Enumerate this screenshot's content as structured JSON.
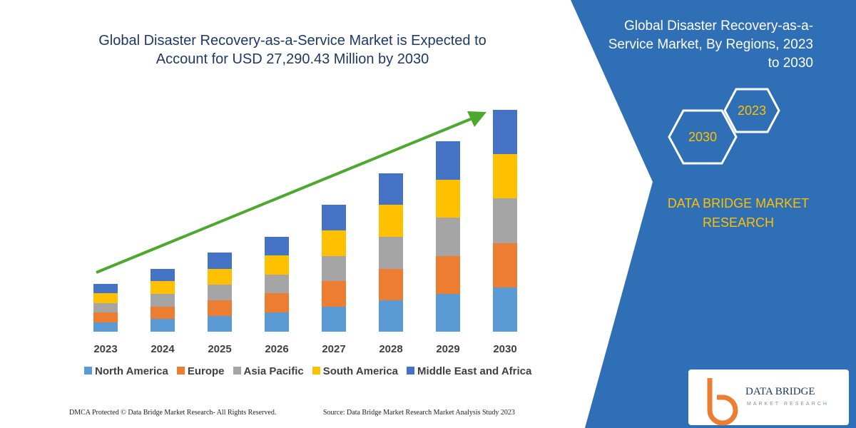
{
  "chart_data": {
    "type": "stacked_bar",
    "title": "Global Disaster Recovery-as-a-Service Market is Expected to Account for USD 27,290.43 Million by 2030",
    "categories": [
      "2023",
      "2024",
      "2025",
      "2026",
      "2027",
      "2028",
      "2029",
      "2030"
    ],
    "series": [
      {
        "name": "North America",
        "color": "#5b9bd5",
        "values": [
          13,
          18,
          22,
          27,
          35,
          44,
          53,
          62
        ]
      },
      {
        "name": "Europe",
        "color": "#ed7d31",
        "values": [
          14,
          17,
          22,
          27,
          36,
          44,
          53,
          62
        ]
      },
      {
        "name": "Asia Pacific",
        "color": "#a5a5a5",
        "values": [
          13,
          18,
          22,
          26,
          35,
          45,
          54,
          63
        ]
      },
      {
        "name": "South America",
        "color": "#ffc000",
        "values": [
          14,
          18,
          22,
          27,
          36,
          45,
          53,
          62
        ]
      },
      {
        "name": "Middle East and Africa",
        "color": "#4472c4",
        "values": [
          13,
          17,
          23,
          26,
          36,
          44,
          54,
          62
        ]
      }
    ],
    "ylim": [
      0,
      311
    ],
    "legend": "bottom",
    "trend_color": "#4ea72e"
  },
  "panel": {
    "title": "Global Disaster Recovery-as-a-Service Market, By Regions, 2023 to 2030",
    "hexagons": [
      "2023",
      "2030"
    ],
    "brand": "DATA BRIDGE MARKET RESEARCH"
  },
  "logo": {
    "name": "DATA BRIDGE",
    "tagline": "MARKET RESEARCH"
  },
  "footer": {
    "left": "DMCA Protected © Data Bridge Market Research-  All Rights Reserved.",
    "right": "Source: Data Bridge Market Research  Market Analysis Study 2023"
  }
}
